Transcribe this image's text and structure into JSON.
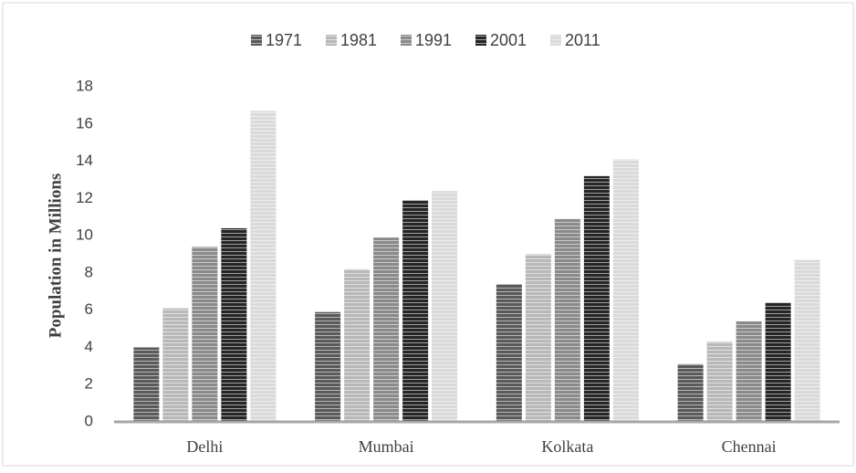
{
  "chart_data": {
    "type": "bar",
    "y_label": "Population in Millions",
    "categories": [
      "Delhi",
      "Mumbai",
      "Kolkata",
      "Chennai"
    ],
    "series": [
      {
        "name": "1971",
        "color": "#5a5a5a",
        "values": [
          4.0,
          5.9,
          7.4,
          3.1
        ]
      },
      {
        "name": "1981",
        "color": "#b8b8b8",
        "values": [
          6.1,
          8.2,
          9.0,
          4.3
        ]
      },
      {
        "name": "1991",
        "color": "#8a8a8a",
        "values": [
          9.4,
          9.9,
          10.9,
          5.4
        ]
      },
      {
        "name": "2001",
        "color": "#262626",
        "values": [
          10.4,
          11.9,
          13.2,
          6.4
        ]
      },
      {
        "name": "2011",
        "color": "#dadada",
        "values": [
          16.7,
          12.4,
          14.1,
          8.7
        ]
      }
    ],
    "ylim": [
      0,
      18
    ],
    "yticks": [
      0,
      2,
      4,
      6,
      8,
      10,
      12,
      14,
      16,
      18
    ],
    "legend": "top",
    "grid": false
  }
}
